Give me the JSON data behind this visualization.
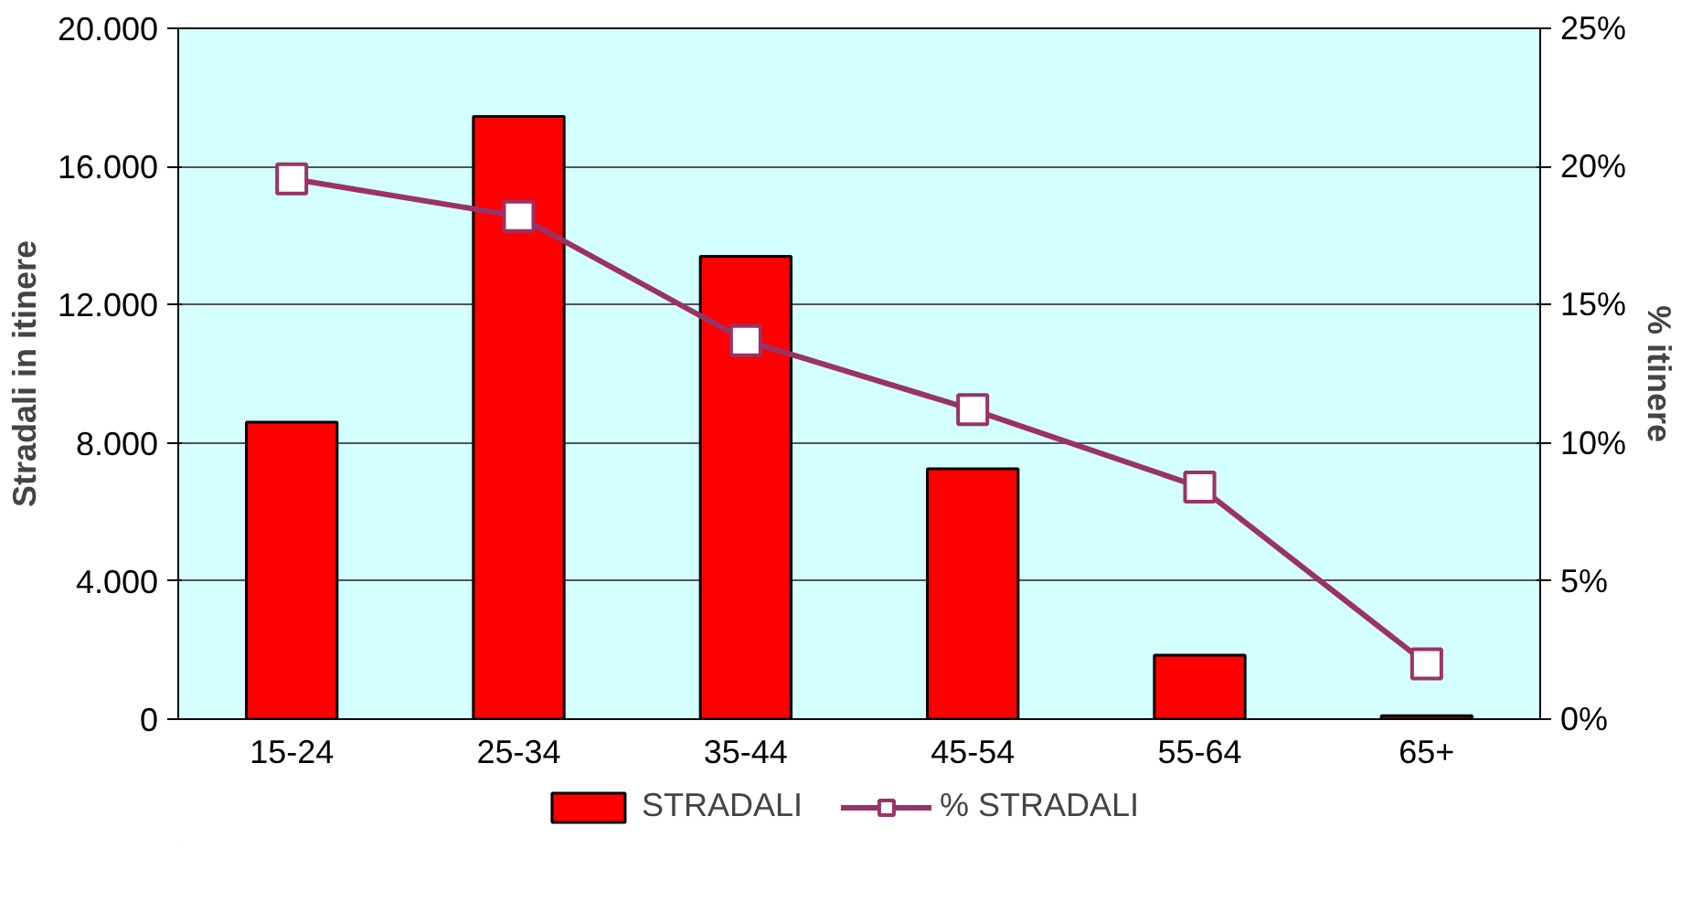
{
  "chart_data": {
    "type": "bar",
    "categories": [
      "15-24",
      "25-34",
      "35-44",
      "45-54",
      "55-64",
      "65+"
    ],
    "ylabel": "Stradali in itinere",
    "y2label": "% itinere",
    "series": [
      {
        "name": "STRADALI",
        "color": "#ff0000",
        "values": [
          8600,
          17450,
          13400,
          7250,
          1850,
          100
        ]
      },
      {
        "name": "% STRADALI",
        "type": "line",
        "axis": "y2",
        "color": "#993366",
        "marker": "square",
        "values": [
          19.55,
          18.2,
          13.7,
          11.2,
          8.4,
          2.0
        ]
      }
    ],
    "ylim": [
      0,
      20000
    ],
    "yticks": [
      {
        "value": 0,
        "label": "0"
      },
      {
        "value": 4000,
        "label": "4.000"
      },
      {
        "value": 8000,
        "label": "8.000"
      },
      {
        "value": 12000,
        "label": "12.000"
      },
      {
        "value": 16000,
        "label": "16.000"
      },
      {
        "value": 20000,
        "label": "20.000"
      }
    ],
    "y2lim": [
      0,
      25
    ],
    "y2ticks": [
      {
        "value": 0,
        "label": "0%"
      },
      {
        "value": 5,
        "label": "5%"
      },
      {
        "value": 10,
        "label": "10%"
      },
      {
        "value": 15,
        "label": "15%"
      },
      {
        "value": 20,
        "label": "20%"
      },
      {
        "value": 25,
        "label": "25%"
      }
    ],
    "grid": "y",
    "legend": "bottom"
  }
}
